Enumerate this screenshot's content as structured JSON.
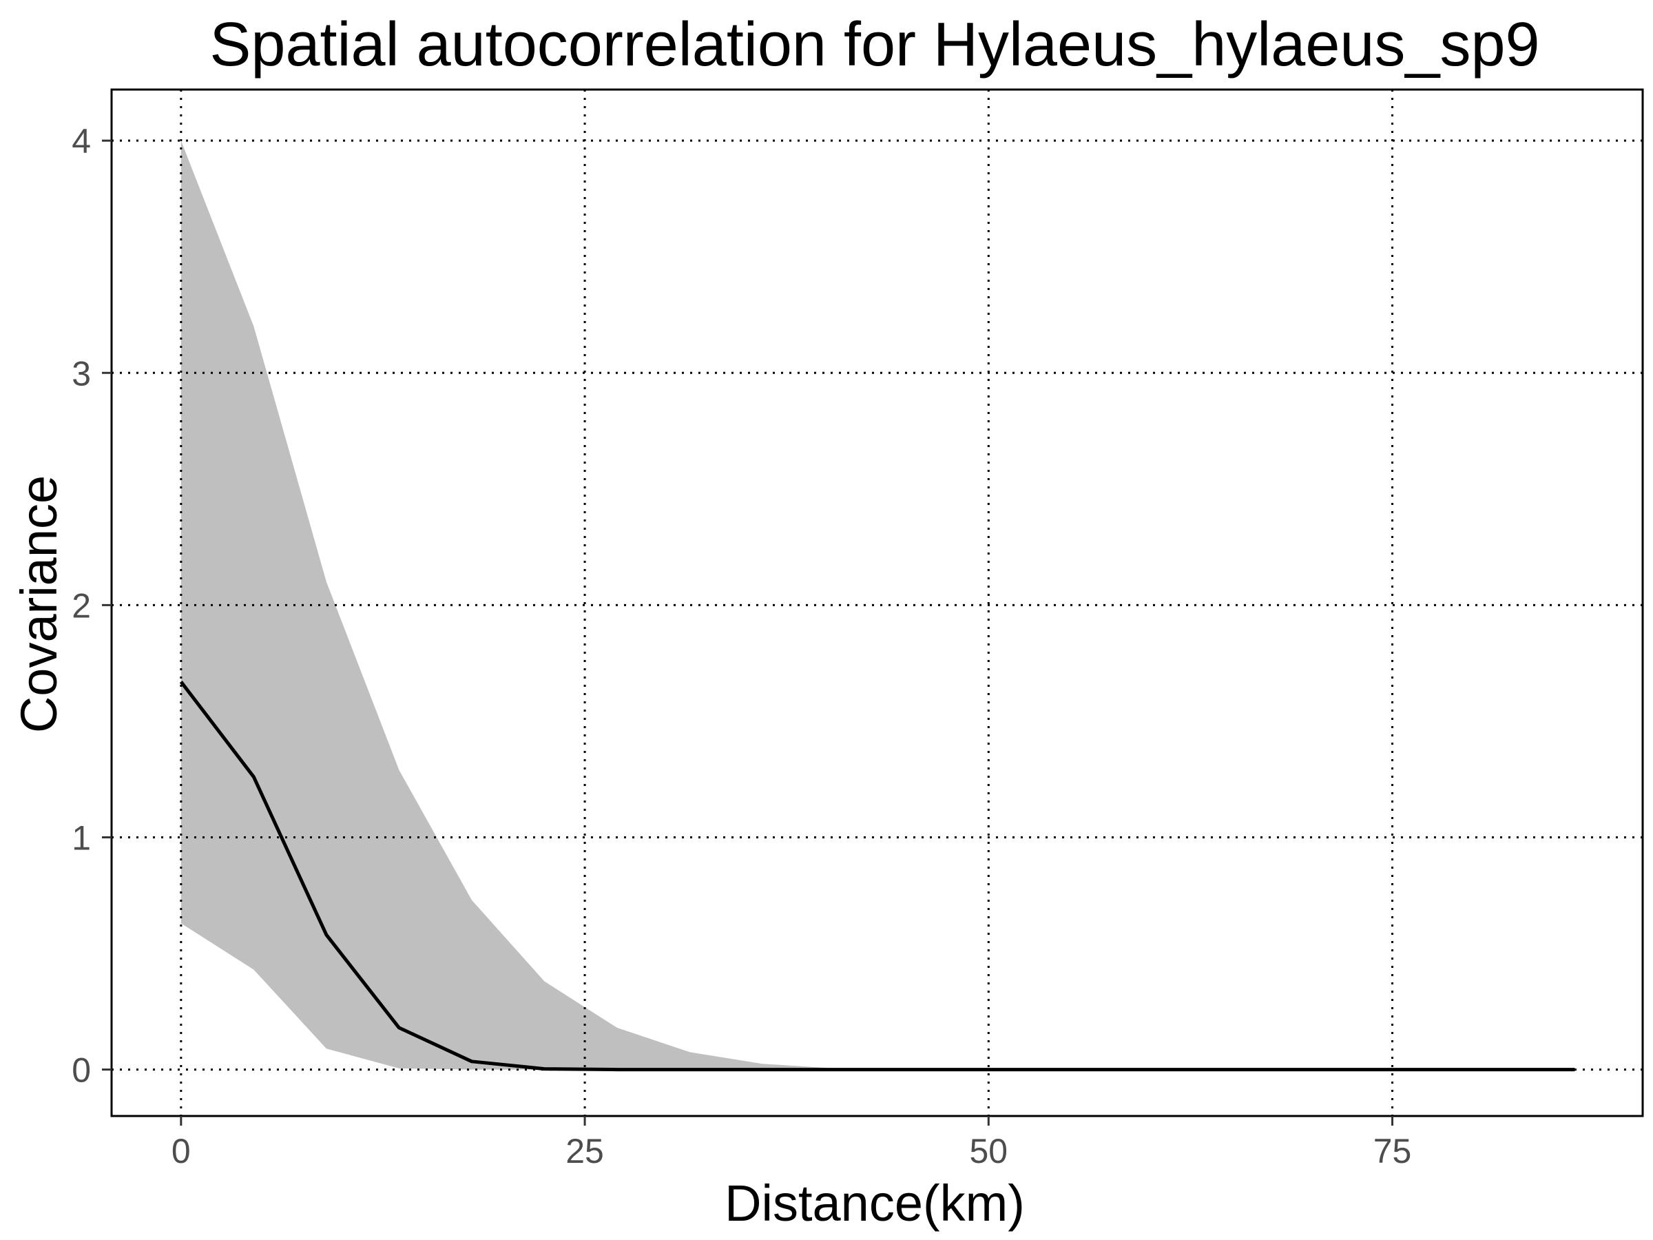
{
  "chart_data": {
    "type": "line",
    "title": "Spatial autocorrelation for Hylaeus_hylaeus_sp9",
    "xlabel": "Distance(km)",
    "ylabel": "Covariance",
    "xlim": [
      -4.3,
      90.5
    ],
    "ylim": [
      -0.2,
      4.22
    ],
    "x_ticks": [
      0,
      25,
      50,
      75
    ],
    "y_ticks": [
      0,
      1,
      2,
      3,
      4
    ],
    "x_tick_labels": [
      "0",
      "25",
      "50",
      "75"
    ],
    "y_tick_labels": [
      "0",
      "1",
      "2",
      "3",
      "4"
    ],
    "grid": "dotted major gridlines",
    "legend": "none",
    "colors": {
      "line": "#000000",
      "ribbon": "#bfbfbf",
      "grid": "#000000",
      "tick_label": "#4d4d4d"
    },
    "series": [
      {
        "kind": "line",
        "x": [
          0,
          4.5,
          9,
          13.5,
          18,
          22.5,
          27,
          31.5,
          36,
          40.5,
          45,
          49.5,
          54,
          58.5,
          63,
          67.5,
          72,
          76.5,
          81,
          86.3
        ],
        "values": [
          1.67,
          1.26,
          0.58,
          0.18,
          0.035,
          0.003,
          0,
          0,
          0,
          0,
          0,
          0,
          0,
          0,
          0,
          0,
          0,
          0,
          0,
          0
        ]
      },
      {
        "kind": "ribbon",
        "x": [
          0,
          4.5,
          9,
          13.5,
          18,
          22.5,
          27,
          31.5,
          36,
          40.5,
          45,
          49.5,
          54,
          58.5,
          63,
          67.5,
          72,
          76.5,
          81,
          86.3
        ],
        "lower": [
          0.63,
          0.43,
          0.09,
          0.005,
          0,
          0,
          0,
          0,
          0,
          0,
          0,
          0,
          0,
          0,
          0,
          0,
          0,
          0,
          0,
          0
        ],
        "upper": [
          4.0,
          3.2,
          2.1,
          1.29,
          0.73,
          0.38,
          0.18,
          0.075,
          0.025,
          0.005,
          0.001,
          0,
          0,
          0,
          0,
          0,
          0,
          0,
          0,
          0
        ]
      }
    ]
  }
}
